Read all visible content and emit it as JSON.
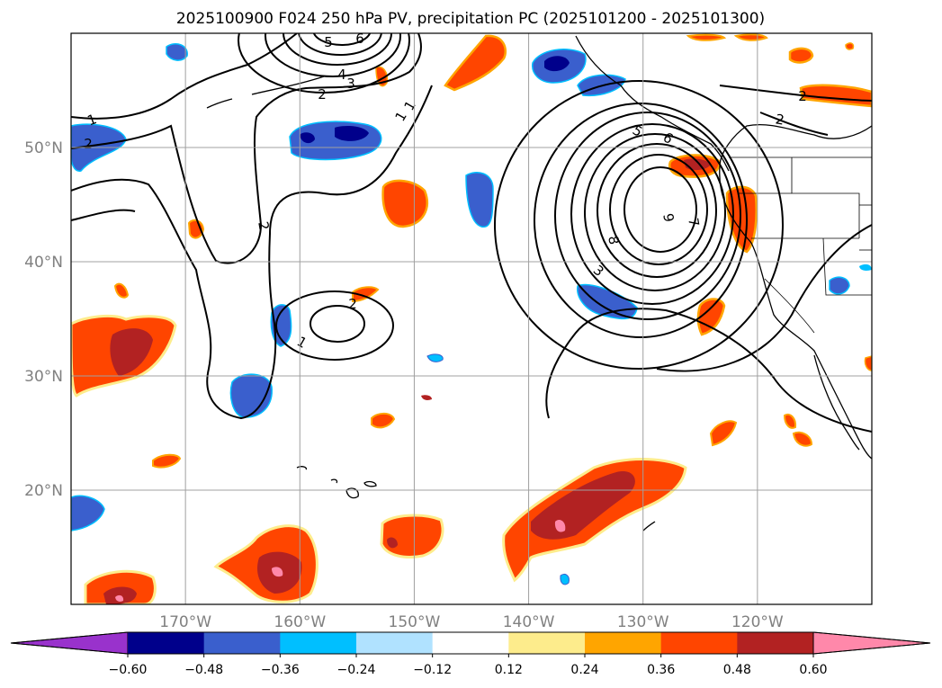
{
  "figure": {
    "title": "2025100900 F024 250 hPa PV, precipitation PC (2025101200 - 2025101300)"
  },
  "map": {
    "lon_range": [
      -180,
      -110
    ],
    "lat_range": [
      10,
      60
    ],
    "lon_ticks": [
      {
        "value": -170,
        "label": "170°W"
      },
      {
        "value": -160,
        "label": "160°W"
      },
      {
        "value": -150,
        "label": "150°W"
      },
      {
        "value": -140,
        "label": "140°W"
      },
      {
        "value": -130,
        "label": "130°W"
      },
      {
        "value": -120,
        "label": "120°W"
      }
    ],
    "lat_ticks": [
      {
        "value": 50,
        "label": "50°N"
      },
      {
        "value": 40,
        "label": "40°N"
      },
      {
        "value": 30,
        "label": "30°N"
      },
      {
        "value": 20,
        "label": "20°N"
      }
    ],
    "gridlines": true
  },
  "colorbar": {
    "orientation": "horizontal",
    "extend": "both",
    "bins": [
      {
        "color": "#9932cc"
      },
      {
        "color": "#00008b"
      },
      {
        "color": "#3a5fcd"
      },
      {
        "color": "#00bfff"
      },
      {
        "color": "#b0e2ff"
      },
      {
        "color": "#ffffff"
      },
      {
        "color": "#fdec8c"
      },
      {
        "color": "#ffa500"
      },
      {
        "color": "#ff4500"
      },
      {
        "color": "#b22222"
      },
      {
        "color": "#ff88aa"
      }
    ],
    "tick_labels": [
      "−0.60",
      "−0.48",
      "−0.36",
      "−0.24",
      "−0.12",
      "0.12",
      "0.24",
      "0.36",
      "0.48",
      "0.60"
    ]
  },
  "pv_contour_labels": [
    "1",
    "2",
    "2",
    "1",
    "2",
    "1",
    "2",
    "3",
    "4",
    "5",
    "6",
    "2",
    "3",
    "5",
    "6",
    "7",
    "8",
    "9",
    "2",
    "1"
  ]
}
